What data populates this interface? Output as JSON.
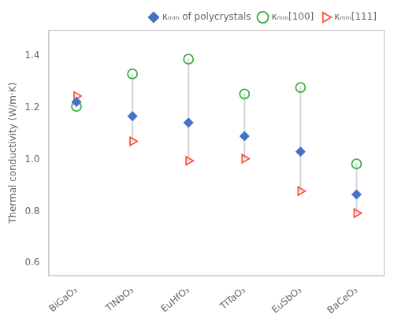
{
  "chart_data": {
    "type": "scatter",
    "categories": [
      "BiGaO₃",
      "TlNbO₃",
      "EuHfO₃",
      "TlTaO₃",
      "EuSbO₃",
      "BaCeO₃"
    ],
    "series": [
      {
        "name": "κₘᵢₙ of polycrystals",
        "color": "#4472C4",
        "marker": "diamond",
        "values": [
          1.222,
          1.167,
          1.142,
          1.09,
          1.03,
          0.865
        ]
      },
      {
        "name": "κₘᵢₙ[100]",
        "color": "#3CB043",
        "marker": "circle-open",
        "values": [
          1.205,
          1.33,
          1.387,
          1.253,
          1.278,
          0.983
        ]
      },
      {
        "name": "κₘᵢₙ[111]",
        "color": "#FF5040",
        "marker": "triangle-right-open",
        "values": [
          1.245,
          1.07,
          0.995,
          1.003,
          0.878,
          0.793
        ]
      }
    ],
    "ylabel": "Thermal conductivity (W/m·K)",
    "ylim": [
      0.55,
      1.5
    ],
    "yticks": [
      0.6,
      0.8,
      {
        "value": 1.0,
        "label": "1.0"
      },
      1.2,
      1.4
    ],
    "grid": false,
    "legend": "upper right"
  }
}
